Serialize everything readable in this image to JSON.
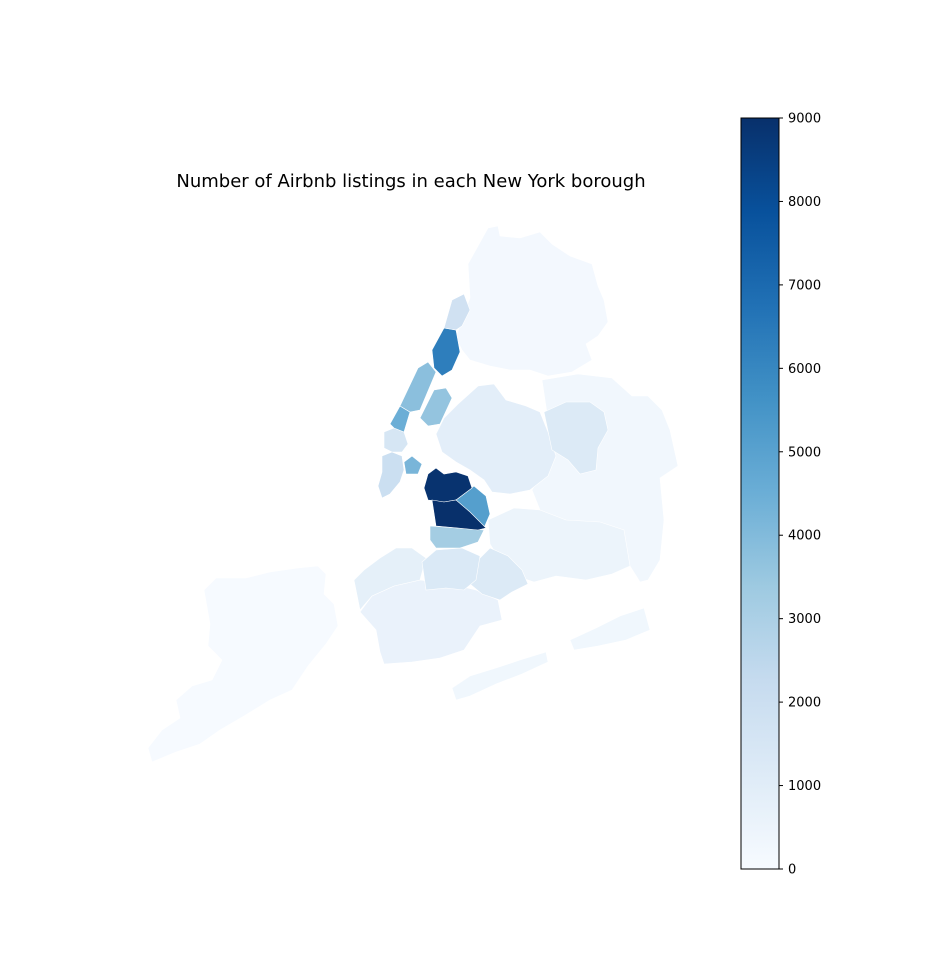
{
  "title": "Number of Airbnb listings in each New York borough",
  "colorbar": {
    "cmap": "Blues",
    "min": 0,
    "max": 9000,
    "ticks": [
      "0",
      "1000",
      "2000",
      "3000",
      "4000",
      "5000",
      "6000",
      "7000",
      "8000",
      "9000"
    ],
    "stops": [
      "#f7fbff",
      "#deebf7",
      "#c6dbef",
      "#9ecae1",
      "#6baed6",
      "#4292c6",
      "#2171b5",
      "#08519c",
      "#08306b"
    ]
  },
  "map": {
    "regions": [
      {
        "id": "staten-island",
        "value": 60
      },
      {
        "id": "bronx",
        "value": 200
      },
      {
        "id": "queens-east",
        "value": 250
      },
      {
        "id": "queens-northwest",
        "value": 900
      },
      {
        "id": "queens-central",
        "value": 1200
      },
      {
        "id": "queens-south",
        "value": 500
      },
      {
        "id": "rockaway",
        "value": 300
      },
      {
        "id": "brooklyn-south",
        "value": 600
      },
      {
        "id": "brooklyn-southwest",
        "value": 800
      },
      {
        "id": "brooklyn-central-east",
        "value": 1200
      },
      {
        "id": "brooklyn-flatbush",
        "value": 1300
      },
      {
        "id": "brooklyn-bedstuy-lower",
        "value": 3200
      },
      {
        "id": "brooklyn-bushwick",
        "value": 5100
      },
      {
        "id": "brooklyn-williamsburg",
        "value": 8900
      },
      {
        "id": "brooklyn-bedstuy",
        "value": 9000
      },
      {
        "id": "lower-manhattan",
        "value": 2000
      },
      {
        "id": "manhattan-midtown",
        "value": 1500
      },
      {
        "id": "manhattan-hells-kitchen",
        "value": 4500
      },
      {
        "id": "manhattan-upper-west",
        "value": 3800
      },
      {
        "id": "manhattan-upper-east",
        "value": 3600
      },
      {
        "id": "manhattan-les",
        "value": 4200
      },
      {
        "id": "manhattan-harlem",
        "value": 6300
      },
      {
        "id": "manhattan-washington-heights",
        "value": 1800
      }
    ]
  }
}
